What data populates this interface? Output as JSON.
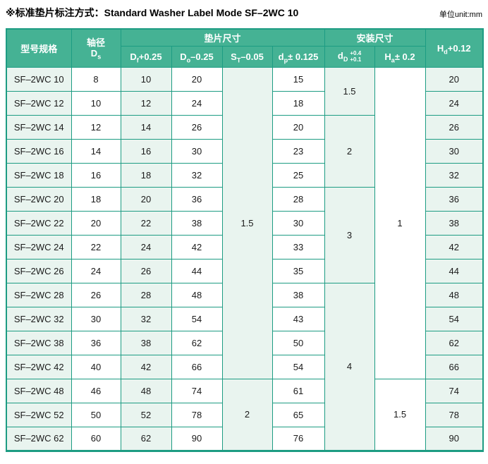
{
  "theme": {
    "header_bg": "#45b294",
    "border_color": "#1d9c83",
    "row_tint": "#e9f4ef"
  },
  "titlebar": {
    "title": "※标准垫片标注方式：Standard Washer Label Mode SF–2WC 10",
    "unit": "单位unit:mm"
  },
  "header": {
    "model": "型号规格",
    "shaft_cn": "轴径",
    "shaft_sym": "D",
    "shaft_sub": "s",
    "washer_group": "垫片尺寸",
    "install_group": "安装尺寸",
    "cols": {
      "df": {
        "sym": "D",
        "sub": "f",
        "tol": "+0.25"
      },
      "do": {
        "sym": "D",
        "sub": "o",
        "tol": "–0.25"
      },
      "st": {
        "sym": "S",
        "sub": "T",
        "tol": "–0.05"
      },
      "dp": {
        "sym": "d",
        "sub": "p",
        "tol": "± 0.125"
      },
      "dd": {
        "sym": "d",
        "sub": "D",
        "tol_top": "+0.4",
        "tol_bottom": "+0.1"
      },
      "ha": {
        "sym": "H",
        "sub": "a",
        "tol": "± 0.2"
      },
      "hd": {
        "sym": "H",
        "sub": "d",
        "tol": "+0.12"
      }
    }
  },
  "table": {
    "rows": [
      {
        "model": "SF–2WC 10",
        "ds": "8",
        "df": "10",
        "do": "20",
        "st": {
          "v": "1.5",
          "rs": 13
        },
        "dp": "15",
        "dd": {
          "v": "1.5",
          "rs": 2
        },
        "ha": {
          "v": "1",
          "rs": 13
        },
        "hd": "20"
      },
      {
        "model": "SF–2WC 12",
        "ds": "10",
        "df": "12",
        "do": "24",
        "st": null,
        "dp": "18",
        "dd": null,
        "ha": null,
        "hd": "24"
      },
      {
        "model": "SF–2WC 14",
        "ds": "12",
        "df": "14",
        "do": "26",
        "st": null,
        "dp": "20",
        "dd": {
          "v": "2",
          "rs": 3
        },
        "ha": null,
        "hd": "26"
      },
      {
        "model": "SF–2WC 16",
        "ds": "14",
        "df": "16",
        "do": "30",
        "st": null,
        "dp": "23",
        "dd": null,
        "ha": null,
        "hd": "30"
      },
      {
        "model": "SF–2WC 18",
        "ds": "16",
        "df": "18",
        "do": "32",
        "st": null,
        "dp": "25",
        "dd": null,
        "ha": null,
        "hd": "32"
      },
      {
        "model": "SF–2WC 20",
        "ds": "18",
        "df": "20",
        "do": "36",
        "st": null,
        "dp": "28",
        "dd": {
          "v": "3",
          "rs": 4
        },
        "ha": null,
        "hd": "36"
      },
      {
        "model": "SF–2WC 22",
        "ds": "20",
        "df": "22",
        "do": "38",
        "st": null,
        "dp": "30",
        "dd": null,
        "ha": null,
        "hd": "38"
      },
      {
        "model": "SF–2WC 24",
        "ds": "22",
        "df": "24",
        "do": "42",
        "st": null,
        "dp": "33",
        "dd": null,
        "ha": null,
        "hd": "42"
      },
      {
        "model": "SF–2WC 26",
        "ds": "24",
        "df": "26",
        "do": "44",
        "st": null,
        "dp": "35",
        "dd": null,
        "ha": null,
        "hd": "44"
      },
      {
        "model": "SF–2WC 28",
        "ds": "26",
        "df": "28",
        "do": "48",
        "st": null,
        "dp": "38",
        "dd": {
          "v": "4",
          "rs": 7
        },
        "ha": null,
        "hd": "48"
      },
      {
        "model": "SF–2WC 32",
        "ds": "30",
        "df": "32",
        "do": "54",
        "st": null,
        "dp": "43",
        "dd": null,
        "ha": null,
        "hd": "54"
      },
      {
        "model": "SF–2WC 38",
        "ds": "36",
        "df": "38",
        "do": "62",
        "st": null,
        "dp": "50",
        "dd": null,
        "ha": null,
        "hd": "62"
      },
      {
        "model": "SF–2WC 42",
        "ds": "40",
        "df": "42",
        "do": "66",
        "st": null,
        "dp": "54",
        "dd": null,
        "ha": null,
        "hd": "66"
      },
      {
        "model": "SF–2WC 48",
        "ds": "46",
        "df": "48",
        "do": "74",
        "st": {
          "v": "2",
          "rs": 3
        },
        "dp": "61",
        "dd": null,
        "ha": {
          "v": "1.5",
          "rs": 3
        },
        "hd": "74"
      },
      {
        "model": "SF–2WC 52",
        "ds": "50",
        "df": "52",
        "do": "78",
        "st": null,
        "dp": "65",
        "dd": null,
        "ha": null,
        "hd": "78"
      },
      {
        "model": "SF–2WC 62",
        "ds": "60",
        "df": "62",
        "do": "90",
        "st": null,
        "dp": "76",
        "dd": null,
        "ha": null,
        "hd": "90"
      }
    ]
  }
}
